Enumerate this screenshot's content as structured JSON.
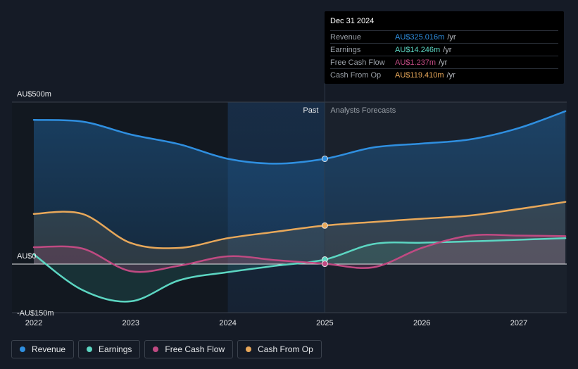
{
  "chart_data": {
    "type": "line",
    "x_label_ticks": [
      "2022",
      "2023",
      "2024",
      "2025",
      "2026",
      "2027"
    ],
    "x_tick_values": [
      2022,
      2023,
      2024,
      2025,
      2026,
      2027
    ],
    "xlim": [
      2021.78,
      2027.48
    ],
    "ylim": [
      -150,
      500
    ],
    "y_labels": [
      {
        "value": 500,
        "text": "AU$500m"
      },
      {
        "value": 0,
        "text": "AU$0"
      },
      {
        "value": -150,
        "text": "-AU$150m"
      }
    ],
    "divider_x": 2025.0,
    "past_start_x": 2024.0,
    "past_label": "Past",
    "forecast_label": "Analysts Forecasts",
    "series": [
      {
        "name": "Revenue",
        "color": "#2f8fe0",
        "x": [
          2022.0,
          2022.5,
          2023.0,
          2023.5,
          2024.0,
          2024.5,
          2025.0,
          2025.5,
          2026.0,
          2026.5,
          2027.0,
          2027.48
        ],
        "values": [
          445,
          440,
          400,
          370,
          325,
          310,
          325,
          360,
          372,
          385,
          420,
          472
        ]
      },
      {
        "name": "Earnings",
        "color": "#5cd6c2",
        "x": [
          2022.0,
          2022.5,
          2023.0,
          2023.5,
          2024.0,
          2024.5,
          2025.0,
          2025.5,
          2026.0,
          2026.5,
          2027.0,
          2027.48
        ],
        "values": [
          30,
          -80,
          -115,
          -50,
          -25,
          -5,
          14,
          62,
          66,
          70,
          75,
          80
        ]
      },
      {
        "name": "Free Cash Flow",
        "color": "#c04a82",
        "x": [
          2022.0,
          2022.5,
          2023.0,
          2023.5,
          2024.0,
          2024.5,
          2025.0,
          2025.5,
          2026.0,
          2026.5,
          2027.0,
          2027.48
        ],
        "values": [
          52,
          48,
          -22,
          -5,
          24,
          12,
          1,
          -10,
          50,
          88,
          88,
          86
        ]
      },
      {
        "name": "Cash From Op",
        "color": "#e8a85a",
        "x": [
          2022.0,
          2022.5,
          2023.0,
          2023.5,
          2024.0,
          2024.5,
          2025.0,
          2025.5,
          2026.0,
          2026.5,
          2027.0,
          2027.48
        ],
        "values": [
          155,
          155,
          65,
          50,
          80,
          100,
          119,
          130,
          140,
          150,
          170,
          192
        ]
      }
    ]
  },
  "tooltip": {
    "date": "Dec 31 2024",
    "rows": [
      {
        "label": "Revenue",
        "value": "AU$325.016m",
        "unit": "/yr",
        "color": "#2f8fe0"
      },
      {
        "label": "Earnings",
        "value": "AU$14.246m",
        "unit": "/yr",
        "color": "#5cd6c2"
      },
      {
        "label": "Free Cash Flow",
        "value": "AU$1.237m",
        "unit": "/yr",
        "color": "#c04a82"
      },
      {
        "label": "Cash From Op",
        "value": "AU$119.410m",
        "unit": "/yr",
        "color": "#e8a85a"
      }
    ]
  },
  "legend": [
    {
      "label": "Revenue",
      "color": "#2f8fe0"
    },
    {
      "label": "Earnings",
      "color": "#5cd6c2"
    },
    {
      "label": "Free Cash Flow",
      "color": "#c04a82"
    },
    {
      "label": "Cash From Op",
      "color": "#e8a85a"
    }
  ]
}
